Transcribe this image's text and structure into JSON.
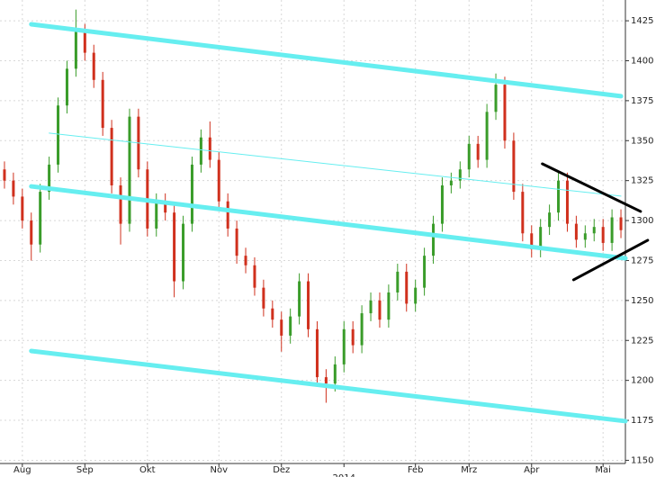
{
  "chart_data": {
    "type": "candlestick",
    "categories": [
      null,
      null,
      "Aug",
      null,
      null,
      null,
      null,
      null,
      null,
      "Sep",
      null,
      null,
      null,
      null,
      null,
      null,
      "Okt",
      null,
      null,
      null,
      null,
      null,
      null,
      null,
      "Nov",
      null,
      null,
      null,
      null,
      null,
      null,
      "Dez",
      null,
      null,
      null,
      null,
      null,
      null,
      "2014",
      null,
      null,
      null,
      null,
      null,
      null,
      null,
      "Feb",
      null,
      null,
      null,
      null,
      null,
      "Mrz",
      null,
      null,
      null,
      null,
      null,
      null,
      "Apr",
      null,
      null,
      null,
      null,
      null,
      null,
      null,
      "Mai",
      null,
      null
    ],
    "open": [
      1332,
      1325,
      1315,
      1300,
      1285,
      1318,
      1335,
      1372,
      1395,
      1418,
      1405,
      1388,
      1358,
      1322,
      1298,
      1365,
      1332,
      1295,
      1312,
      1305,
      1262,
      1298,
      1335,
      1352,
      1338,
      1312,
      1295,
      1278,
      1272,
      1258,
      1245,
      1238,
      1228,
      1240,
      1262,
      1232,
      1202,
      1198,
      1210,
      1232,
      1222,
      1242,
      1250,
      1238,
      1255,
      1268,
      1248,
      1258,
      1278,
      1298,
      1322,
      1325,
      1332,
      1348,
      1338,
      1368,
      1385,
      1350,
      1318,
      1292,
      1282,
      1296,
      1305,
      1325,
      1298,
      1288,
      1292,
      1296,
      1286,
      1302
    ],
    "high": [
      1337,
      1330,
      1320,
      1305,
      1323,
      1340,
      1377,
      1400,
      1432,
      1423,
      1410,
      1393,
      1363,
      1327,
      1370,
      1370,
      1337,
      1317,
      1317,
      1310,
      1303,
      1340,
      1357,
      1362,
      1343,
      1317,
      1300,
      1283,
      1277,
      1263,
      1250,
      1243,
      1245,
      1267,
      1267,
      1237,
      1207,
      1215,
      1237,
      1237,
      1247,
      1255,
      1255,
      1260,
      1273,
      1273,
      1263,
      1283,
      1303,
      1327,
      1330,
      1337,
      1353,
      1353,
      1373,
      1392,
      1390,
      1355,
      1323,
      1297,
      1301,
      1310,
      1330,
      1330,
      1303,
      1297,
      1301,
      1301,
      1307,
      1307
    ],
    "low": [
      1320,
      1310,
      1295,
      1275,
      1280,
      1313,
      1330,
      1367,
      1390,
      1400,
      1383,
      1353,
      1317,
      1285,
      1293,
      1327,
      1290,
      1290,
      1300,
      1252,
      1257,
      1293,
      1330,
      1333,
      1307,
      1290,
      1273,
      1267,
      1253,
      1240,
      1233,
      1218,
      1223,
      1235,
      1227,
      1197,
      1186,
      1193,
      1205,
      1217,
      1217,
      1237,
      1233,
      1233,
      1250,
      1243,
      1243,
      1253,
      1273,
      1293,
      1317,
      1320,
      1327,
      1333,
      1333,
      1363,
      1345,
      1313,
      1287,
      1277,
      1277,
      1291,
      1300,
      1293,
      1283,
      1283,
      1287,
      1281,
      1281,
      1289
    ],
    "close": [
      1325,
      1315,
      1300,
      1285,
      1318,
      1335,
      1372,
      1395,
      1418,
      1405,
      1388,
      1358,
      1322,
      1298,
      1365,
      1332,
      1295,
      1312,
      1305,
      1262,
      1298,
      1335,
      1352,
      1338,
      1312,
      1295,
      1278,
      1272,
      1258,
      1245,
      1238,
      1228,
      1240,
      1262,
      1232,
      1202,
      1198,
      1210,
      1232,
      1222,
      1242,
      1250,
      1238,
      1255,
      1268,
      1248,
      1258,
      1278,
      1298,
      1322,
      1325,
      1332,
      1348,
      1338,
      1368,
      1385,
      1350,
      1318,
      1292,
      1282,
      1296,
      1305,
      1325,
      1298,
      1288,
      1292,
      1296,
      1286,
      1302,
      1294
    ],
    "up_color": "#3a9c2a",
    "down_color": "#d0301d",
    "ylim": [
      1148,
      1438
    ],
    "yticks": [
      1150,
      1175,
      1200,
      1225,
      1250,
      1275,
      1300,
      1325,
      1350,
      1375,
      1400,
      1425
    ],
    "grid": true,
    "trend_lines": [
      {
        "color": "#66eef0",
        "width": 5,
        "points": [
          [
            3,
            1422.8
          ],
          [
            69,
            1377.8
          ]
        ]
      },
      {
        "color": "#66eef0",
        "width": 1,
        "points": [
          [
            5,
            1354.7
          ],
          [
            69,
            1315.3
          ]
        ]
      },
      {
        "color": "#66eef0",
        "width": 5,
        "points": [
          [
            3,
            1321.4
          ],
          [
            69.5,
            1276.4
          ]
        ]
      },
      {
        "color": "#66eef0",
        "width": 5,
        "points": [
          [
            3,
            1218.4
          ],
          [
            69.5,
            1174.5
          ]
        ]
      },
      {
        "color": "#000000",
        "width": 3,
        "points": [
          [
            60.2,
            1335.5
          ],
          [
            71.2,
            1305.7
          ]
        ]
      },
      {
        "color": "#000000",
        "width": 3,
        "points": [
          [
            63.7,
            1262.9
          ],
          [
            72,
            1287.7
          ]
        ]
      }
    ]
  }
}
